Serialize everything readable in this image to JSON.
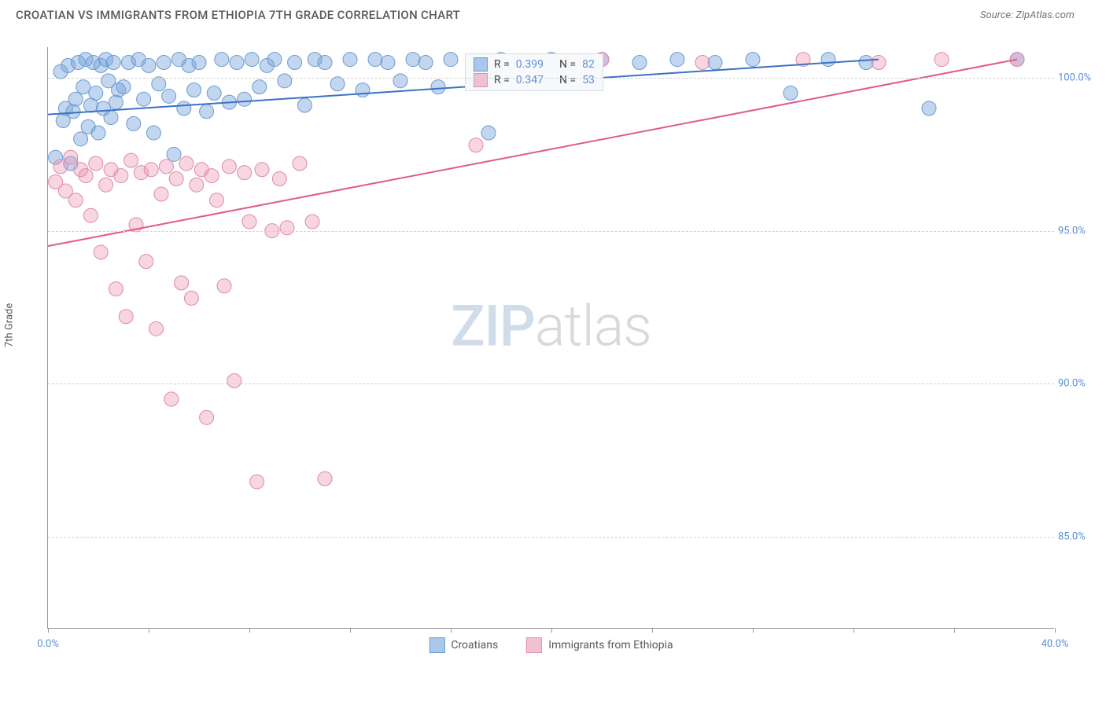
{
  "title": "CROATIAN VS IMMIGRANTS FROM ETHIOPIA 7TH GRADE CORRELATION CHART",
  "source": "Source: ZipAtlas.com",
  "y_axis_label": "7th Grade",
  "watermark_a": "ZIP",
  "watermark_b": "atlas",
  "chart": {
    "type": "scatter",
    "xlim": [
      0,
      40
    ],
    "ylim": [
      82,
      101
    ],
    "x_ticks": [
      0,
      40
    ],
    "x_tick_marks": [
      0,
      4,
      8,
      12,
      16,
      20,
      24,
      28,
      32,
      36,
      40
    ],
    "y_ticks": [
      85,
      90,
      95,
      100
    ],
    "x_tick_labels": [
      "0.0%",
      "40.0%"
    ],
    "y_tick_labels": [
      "85.0%",
      "90.0%",
      "95.0%",
      "100.0%"
    ],
    "grid_color": "#d0d0d0",
    "background": "#ffffff",
    "series": [
      {
        "name": "Croatians",
        "color_fill": "rgba(120,165,220,0.45)",
        "color_stroke": "#6b9bd1",
        "swatch_fill": "#a9c7ea",
        "swatch_border": "#6b9bd1",
        "marker_radius": 9,
        "R": "0.399",
        "N": "82",
        "trend": {
          "x1": 0,
          "y1": 98.8,
          "x2": 33,
          "y2": 100.6,
          "color": "#3b72c4",
          "width": 2
        },
        "points": [
          [
            0.3,
            97.4
          ],
          [
            0.5,
            100.2
          ],
          [
            0.6,
            98.6
          ],
          [
            0.7,
            99.0
          ],
          [
            0.8,
            100.4
          ],
          [
            0.9,
            97.2
          ],
          [
            1.0,
            98.9
          ],
          [
            1.1,
            99.3
          ],
          [
            1.2,
            100.5
          ],
          [
            1.3,
            98.0
          ],
          [
            1.4,
            99.7
          ],
          [
            1.5,
            100.6
          ],
          [
            1.6,
            98.4
          ],
          [
            1.7,
            99.1
          ],
          [
            1.8,
            100.5
          ],
          [
            1.9,
            99.5
          ],
          [
            2.0,
            98.2
          ],
          [
            2.1,
            100.4
          ],
          [
            2.2,
            99.0
          ],
          [
            2.3,
            100.6
          ],
          [
            2.4,
            99.9
          ],
          [
            2.5,
            98.7
          ],
          [
            2.6,
            100.5
          ],
          [
            2.7,
            99.2
          ],
          [
            2.8,
            99.6
          ],
          [
            3.0,
            99.7
          ],
          [
            3.2,
            100.5
          ],
          [
            3.4,
            98.5
          ],
          [
            3.6,
            100.6
          ],
          [
            3.8,
            99.3
          ],
          [
            4.0,
            100.4
          ],
          [
            4.2,
            98.2
          ],
          [
            4.4,
            99.8
          ],
          [
            4.6,
            100.5
          ],
          [
            4.8,
            99.4
          ],
          [
            5.0,
            97.5
          ],
          [
            5.2,
            100.6
          ],
          [
            5.4,
            99.0
          ],
          [
            5.6,
            100.4
          ],
          [
            5.8,
            99.6
          ],
          [
            6.0,
            100.5
          ],
          [
            6.3,
            98.9
          ],
          [
            6.6,
            99.5
          ],
          [
            6.9,
            100.6
          ],
          [
            7.2,
            99.2
          ],
          [
            7.5,
            100.5
          ],
          [
            7.8,
            99.3
          ],
          [
            8.1,
            100.6
          ],
          [
            8.4,
            99.7
          ],
          [
            8.7,
            100.4
          ],
          [
            9.0,
            100.6
          ],
          [
            9.4,
            99.9
          ],
          [
            9.8,
            100.5
          ],
          [
            10.2,
            99.1
          ],
          [
            10.6,
            100.6
          ],
          [
            11.0,
            100.5
          ],
          [
            11.5,
            99.8
          ],
          [
            12.0,
            100.6
          ],
          [
            12.5,
            99.6
          ],
          [
            13.0,
            100.6
          ],
          [
            13.5,
            100.5
          ],
          [
            14.0,
            99.9
          ],
          [
            14.5,
            100.6
          ],
          [
            15.0,
            100.5
          ],
          [
            15.5,
            99.7
          ],
          [
            16.0,
            100.6
          ],
          [
            17.0,
            100.5
          ],
          [
            17.5,
            98.2
          ],
          [
            18.0,
            100.6
          ],
          [
            19.0,
            100.5
          ],
          [
            20.0,
            100.6
          ],
          [
            21.0,
            100.5
          ],
          [
            22.0,
            100.6
          ],
          [
            23.5,
            100.5
          ],
          [
            25.0,
            100.6
          ],
          [
            26.5,
            100.5
          ],
          [
            28.0,
            100.6
          ],
          [
            29.5,
            99.5
          ],
          [
            31.0,
            100.6
          ],
          [
            32.5,
            100.5
          ],
          [
            35.0,
            99.0
          ],
          [
            38.5,
            100.6
          ]
        ]
      },
      {
        "name": "Immigrants from Ethiopia",
        "color_fill": "rgba(235,150,180,0.40)",
        "color_stroke": "#e089a9",
        "swatch_fill": "#f2c0d2",
        "swatch_border": "#e28fab",
        "marker_radius": 9,
        "R": "0.347",
        "N": "53",
        "trend": {
          "x1": 0,
          "y1": 94.5,
          "x2": 38.5,
          "y2": 100.6,
          "color": "#e05a88",
          "width": 2
        },
        "points": [
          [
            0.3,
            96.6
          ],
          [
            0.5,
            97.1
          ],
          [
            0.7,
            96.3
          ],
          [
            0.9,
            97.4
          ],
          [
            1.1,
            96.0
          ],
          [
            1.3,
            97.0
          ],
          [
            1.5,
            96.8
          ],
          [
            1.7,
            95.5
          ],
          [
            1.9,
            97.2
          ],
          [
            2.1,
            94.3
          ],
          [
            2.3,
            96.5
          ],
          [
            2.5,
            97.0
          ],
          [
            2.7,
            93.1
          ],
          [
            2.9,
            96.8
          ],
          [
            3.1,
            92.2
          ],
          [
            3.3,
            97.3
          ],
          [
            3.5,
            95.2
          ],
          [
            3.7,
            96.9
          ],
          [
            3.9,
            94.0
          ],
          [
            4.1,
            97.0
          ],
          [
            4.3,
            91.8
          ],
          [
            4.5,
            96.2
          ],
          [
            4.7,
            97.1
          ],
          [
            4.9,
            89.5
          ],
          [
            5.1,
            96.7
          ],
          [
            5.3,
            93.3
          ],
          [
            5.5,
            97.2
          ],
          [
            5.7,
            92.8
          ],
          [
            5.9,
            96.5
          ],
          [
            6.1,
            97.0
          ],
          [
            6.3,
            88.9
          ],
          [
            6.5,
            96.8
          ],
          [
            6.7,
            96.0
          ],
          [
            7.0,
            93.2
          ],
          [
            7.2,
            97.1
          ],
          [
            7.4,
            90.1
          ],
          [
            7.8,
            96.9
          ],
          [
            8.0,
            95.3
          ],
          [
            8.3,
            86.8
          ],
          [
            8.5,
            97.0
          ],
          [
            8.9,
            95.0
          ],
          [
            9.2,
            96.7
          ],
          [
            9.5,
            95.1
          ],
          [
            10.0,
            97.2
          ],
          [
            10.5,
            95.3
          ],
          [
            11.0,
            86.9
          ],
          [
            17.0,
            97.8
          ],
          [
            22.0,
            100.6
          ],
          [
            26.0,
            100.5
          ],
          [
            30.0,
            100.6
          ],
          [
            33.0,
            100.5
          ],
          [
            35.5,
            100.6
          ],
          [
            38.5,
            100.6
          ]
        ]
      }
    ]
  },
  "bottom_legend": [
    {
      "label": "Croatians",
      "fill": "#a9c7ea",
      "border": "#6b9bd1"
    },
    {
      "label": "Immigrants from Ethiopia",
      "fill": "#f2c0d2",
      "border": "#e28fab"
    }
  ]
}
